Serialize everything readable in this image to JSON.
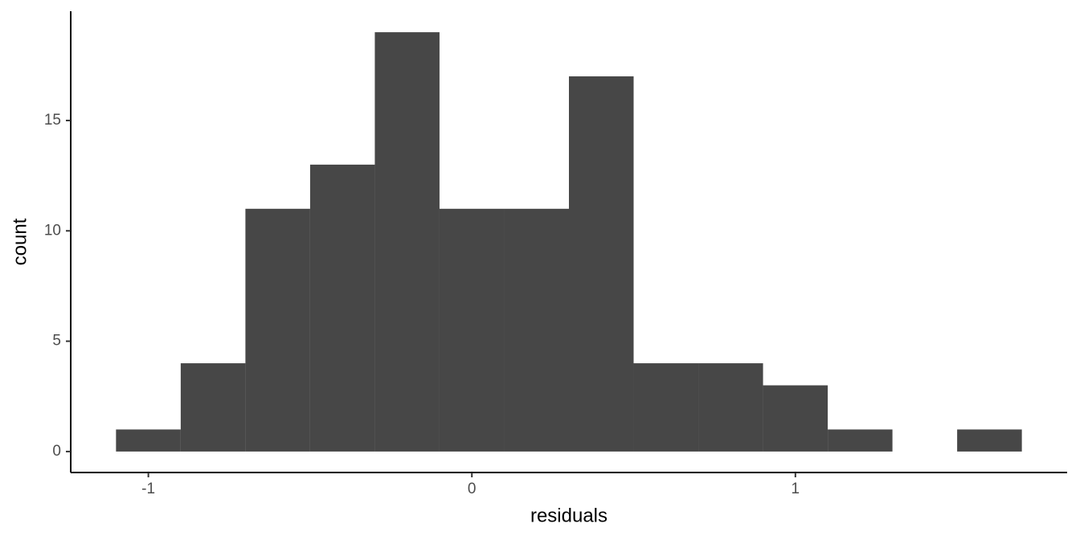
{
  "chart_data": {
    "type": "histogram",
    "x_label": "residuals",
    "y_label": "count",
    "bins": [
      -1.1,
      -0.9,
      -0.7,
      -0.5,
      -0.3,
      -0.1,
      0.1,
      0.3,
      0.5,
      0.7,
      0.9,
      1.1,
      1.3,
      1.5,
      1.7
    ],
    "values": [
      1,
      4,
      11,
      13,
      19,
      11,
      11,
      17,
      4,
      4,
      3,
      1,
      0,
      1
    ],
    "color": "#474747",
    "xlim": [
      -1.24,
      1.84
    ],
    "xticks": [
      -1,
      0,
      1
    ],
    "ylim": [
      -0.95,
      19.95
    ],
    "yticks": [
      0,
      5,
      10,
      15
    ],
    "grid": false
  }
}
